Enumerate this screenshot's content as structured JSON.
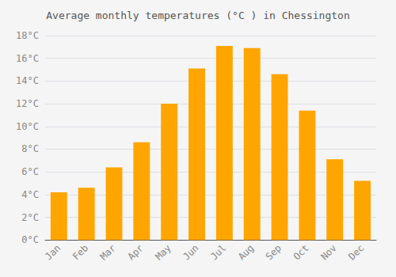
{
  "chart_data": {
    "type": "bar",
    "title": "Average monthly temperatures (°C ) in Chessington",
    "categories": [
      "Jan",
      "Feb",
      "Mar",
      "Apr",
      "May",
      "Jun",
      "Jul",
      "Aug",
      "Sep",
      "Oct",
      "Nov",
      "Dec"
    ],
    "values": [
      4.2,
      4.6,
      6.4,
      8.6,
      12.0,
      15.1,
      17.1,
      16.9,
      14.6,
      11.4,
      7.1,
      5.2
    ],
    "color": "#FFA500",
    "ylim": [
      0,
      18
    ],
    "yticks": [
      {
        "value": 0,
        "label": "0°C"
      },
      {
        "value": 2,
        "label": "2°C"
      },
      {
        "value": 4,
        "label": "4°C"
      },
      {
        "value": 6,
        "label": "6°C"
      },
      {
        "value": 8,
        "label": "8°C"
      },
      {
        "value": 10,
        "label": "10°C"
      },
      {
        "value": 12,
        "label": "12°C"
      },
      {
        "value": 14,
        "label": "14°C"
      },
      {
        "value": 16,
        "label": "16°C"
      },
      {
        "value": 18,
        "label": "18°C"
      }
    ],
    "grid": true
  }
}
